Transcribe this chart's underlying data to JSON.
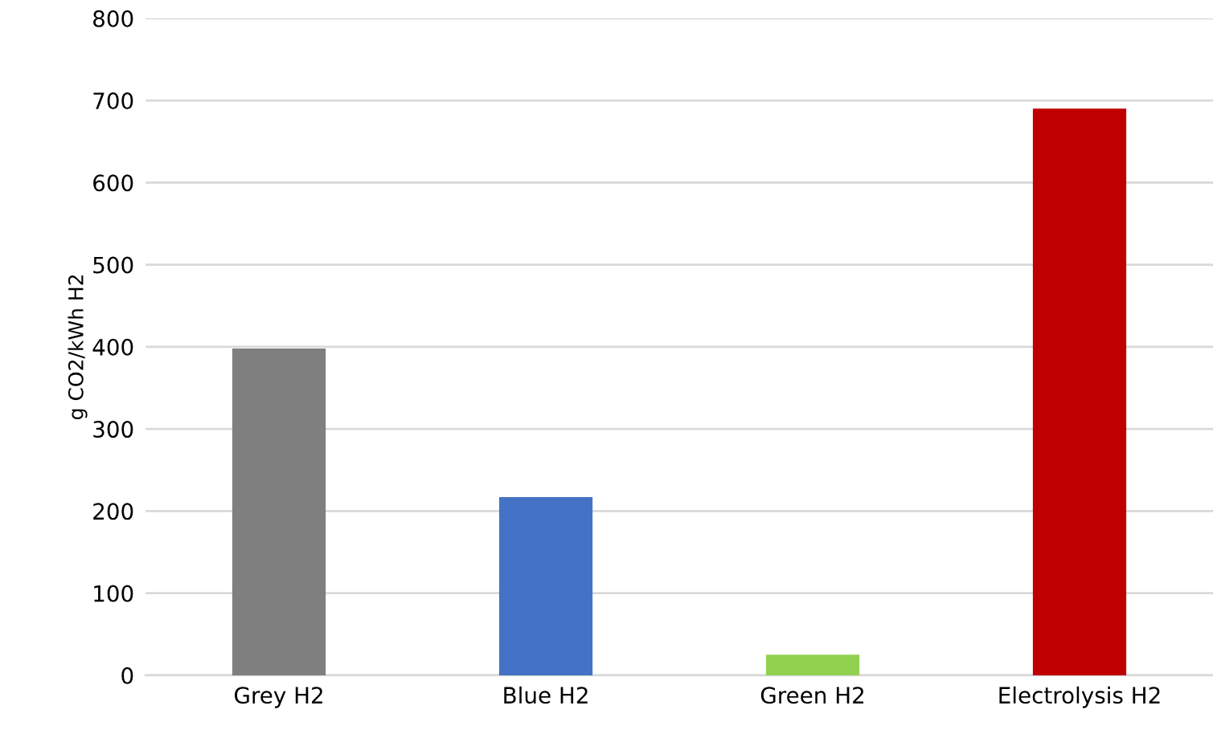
{
  "chart_data": {
    "type": "bar",
    "ylabel": "g CO2/kWh H2",
    "categories": [
      "Grey H2",
      "Blue H2",
      "Green H2",
      "Electrolysis H2"
    ],
    "values": [
      398,
      217,
      25,
      690
    ],
    "colors": [
      "#7f7f7f",
      "#4472c4",
      "#92d050",
      "#c00000"
    ],
    "ylim": [
      0,
      800
    ],
    "yticks": [
      0,
      100,
      200,
      300,
      400,
      500,
      600,
      700,
      800
    ],
    "grid": "y"
  }
}
